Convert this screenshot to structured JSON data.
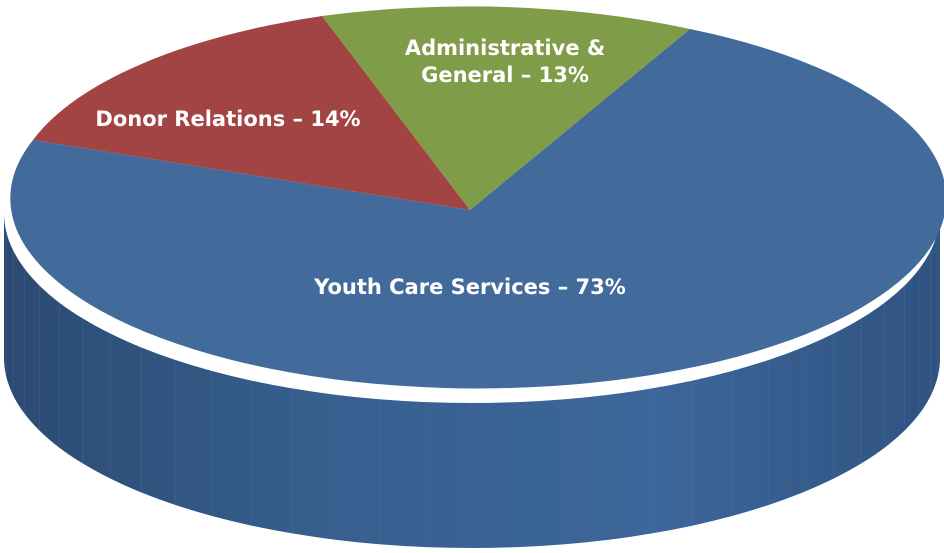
{
  "chart_data": {
    "type": "pie",
    "style": "3d",
    "title": "",
    "slices": [
      {
        "label": "Youth Care Services",
        "value": 73,
        "display": "Youth Care Services – 73%",
        "color": "#426b9c",
        "side_color": "#355b88"
      },
      {
        "label": "Donor Relations",
        "value": 14,
        "display": "Donor Relations – 14%",
        "color": "#a14443",
        "side_color": "#7f3332"
      },
      {
        "label": "Administrative & General",
        "value": 13,
        "display_lines": [
          "Administrative &",
          "General – 13%"
        ],
        "color": "#7f9c48",
        "side_color": "#63793a"
      }
    ]
  }
}
